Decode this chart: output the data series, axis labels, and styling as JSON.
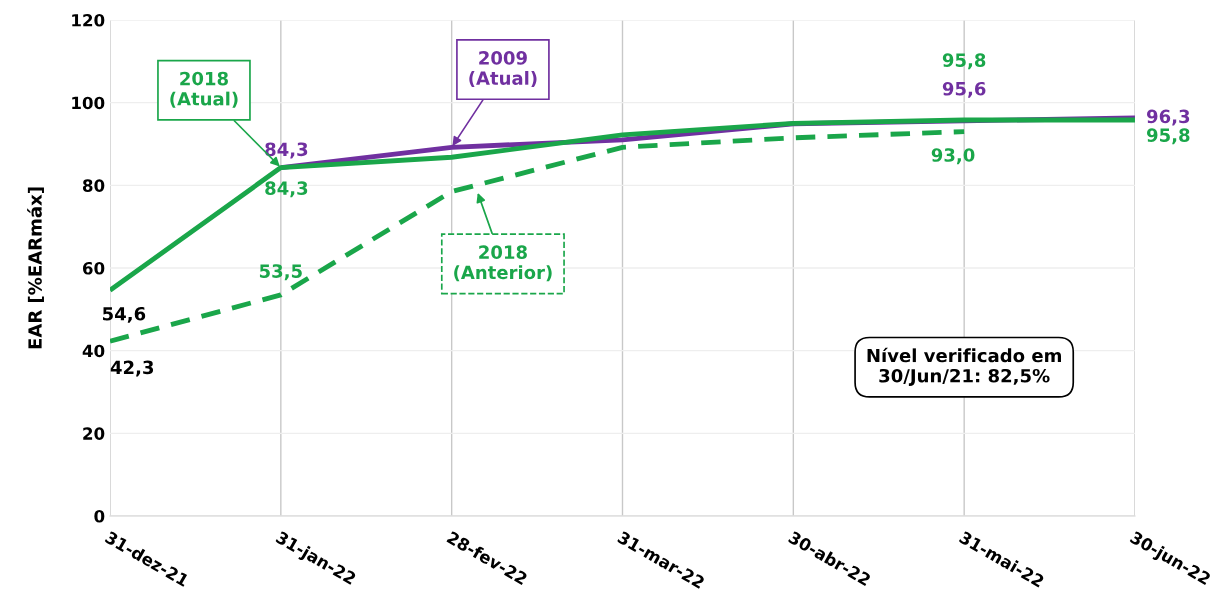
{
  "chart_data": {
    "type": "line",
    "ylabel": "EAR [%EARmáx]",
    "categories": [
      "31-dez-21",
      "31-jan-22",
      "28-fev-22",
      "31-mar-22",
      "30-abr-22",
      "31-mai-22",
      "30-jun-22"
    ],
    "series": [
      {
        "color": "#1aa64a",
        "line_style": "dashed",
        "values": [
          42.3,
          53.5,
          78.5,
          89.2,
          91.5,
          93.0,
          null
        ],
        "value_labels": [
          "42,3",
          "53,5",
          null,
          null,
          null,
          "93,0",
          null
        ]
      },
      {
        "color": "#7030a0",
        "line_style": "solid",
        "values": [
          null,
          84.3,
          89.2,
          91.0,
          94.9,
          95.6,
          96.3
        ],
        "value_labels": [
          null,
          "84,3",
          null,
          null,
          null,
          "95,6",
          "96,3"
        ]
      },
      {
        "color": "#1aa64a",
        "line_style": "solid",
        "values": [
          54.6,
          84.3,
          86.8,
          92.2,
          95.0,
          95.8,
          95.8
        ],
        "value_labels": [
          "54,6",
          "84,3",
          null,
          null,
          null,
          "95,8",
          "95,8"
        ]
      }
    ],
    "ylim": [
      0,
      120
    ],
    "yticks": [
      0,
      20,
      40,
      60,
      80,
      100,
      120
    ],
    "grid": true,
    "marker": "none",
    "annotations": [
      {
        "text": "2018\n(Atual)",
        "x": "31-jan-22",
        "y": 84.3
      },
      {
        "text": "2009\n(Atual)",
        "x": "28-fev-22",
        "y": 89.2
      },
      {
        "text": "2018\n(Anterior)",
        "x": "28-fev-22",
        "y": 78.5
      },
      "Nível verificado em\n30/Jun/21: 82,5%"
    ]
  }
}
